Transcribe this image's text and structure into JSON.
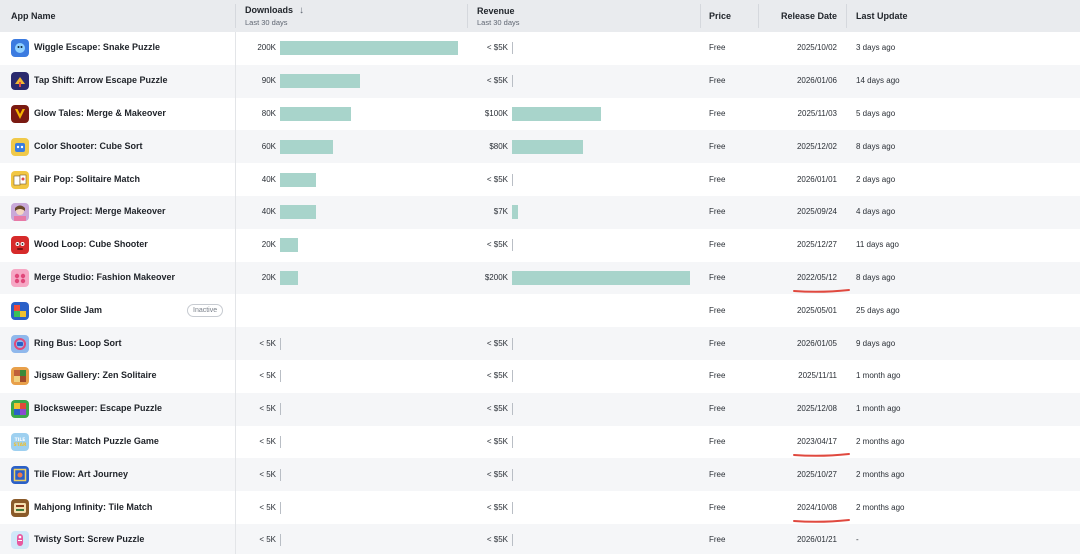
{
  "columns": {
    "app_name": "App Name",
    "downloads": "Downloads",
    "downloads_sub": "Last 30 days",
    "revenue": "Revenue",
    "revenue_sub": "Last 30 days",
    "price": "Price",
    "release_date": "Release Date",
    "last_update": "Last Update"
  },
  "colors": {
    "bar": "#a8d4cb",
    "annotation": "#e0493f"
  },
  "rows": [
    {
      "name": "Wiggle Escape: Snake Puzzle",
      "icon": "snake-app-icon",
      "downloads": "200K",
      "downloads_value": 200,
      "revenue": "< $5K",
      "revenue_value": 0,
      "price": "Free",
      "release": "2025/10/02",
      "update": "3 days ago",
      "status": ""
    },
    {
      "name": "Tap Shift: Arrow Escape Puzzle",
      "icon": "arrow-app-icon",
      "downloads": "90K",
      "downloads_value": 90,
      "revenue": "< $5K",
      "revenue_value": 0,
      "price": "Free",
      "release": "2026/01/06",
      "update": "14 days ago",
      "status": ""
    },
    {
      "name": "Glow Tales: Merge & Makeover",
      "icon": "glow-app-icon",
      "downloads": "80K",
      "downloads_value": 80,
      "revenue": "$100K",
      "revenue_value": 100,
      "price": "Free",
      "release": "2025/11/03",
      "update": "5 days ago",
      "status": ""
    },
    {
      "name": "Color Shooter: Cube Sort",
      "icon": "cube-app-icon",
      "downloads": "60K",
      "downloads_value": 60,
      "revenue": "$80K",
      "revenue_value": 80,
      "price": "Free",
      "release": "2025/12/02",
      "update": "8 days ago",
      "status": ""
    },
    {
      "name": "Pair Pop: Solitaire Match",
      "icon": "cards-app-icon",
      "downloads": "40K",
      "downloads_value": 40,
      "revenue": "< $5K",
      "revenue_value": 0,
      "price": "Free",
      "release": "2026/01/01",
      "update": "2 days ago",
      "status": ""
    },
    {
      "name": "Party Project: Merge Makeover",
      "icon": "party-app-icon",
      "downloads": "40K",
      "downloads_value": 40,
      "revenue": "$7K",
      "revenue_value": 7,
      "price": "Free",
      "release": "2025/09/24",
      "update": "4 days ago",
      "status": ""
    },
    {
      "name": "Wood Loop: Cube Shooter",
      "icon": "loop-app-icon",
      "downloads": "20K",
      "downloads_value": 20,
      "revenue": "< $5K",
      "revenue_value": 0,
      "price": "Free",
      "release": "2025/12/27",
      "update": "11 days ago",
      "status": ""
    },
    {
      "name": "Merge Studio: Fashion Makeover",
      "icon": "fashion-app-icon",
      "downloads": "20K",
      "downloads_value": 20,
      "revenue": "$200K",
      "revenue_value": 200,
      "price": "Free",
      "release": "2022/05/12",
      "update": "8 days ago",
      "status": "",
      "annotated": true
    },
    {
      "name": "Color Slide Jam",
      "icon": "slide-app-icon",
      "downloads": "",
      "downloads_value": null,
      "revenue": "",
      "revenue_value": null,
      "price": "Free",
      "release": "2025/05/01",
      "update": "25 days ago",
      "status": "Inactive"
    },
    {
      "name": "Ring Bus: Loop Sort",
      "icon": "bus-app-icon",
      "downloads": "< 5K",
      "downloads_value": 0,
      "revenue": "< $5K",
      "revenue_value": 0,
      "price": "Free",
      "release": "2026/01/05",
      "update": "9 days ago",
      "status": ""
    },
    {
      "name": "Jigsaw Gallery: Zen Solitaire",
      "icon": "jigsaw-app-icon",
      "downloads": "< 5K",
      "downloads_value": 0,
      "revenue": "< $5K",
      "revenue_value": 0,
      "price": "Free",
      "release": "2025/11/11",
      "update": "1 month ago",
      "status": ""
    },
    {
      "name": "Blocksweeper: Escape Puzzle",
      "icon": "blocks-app-icon",
      "downloads": "< 5K",
      "downloads_value": 0,
      "revenue": "< $5K",
      "revenue_value": 0,
      "price": "Free",
      "release": "2025/12/08",
      "update": "1 month ago",
      "status": ""
    },
    {
      "name": "Tile Star: Match Puzzle Game",
      "icon": "tilestar-app-icon",
      "downloads": "< 5K",
      "downloads_value": 0,
      "revenue": "< $5K",
      "revenue_value": 0,
      "price": "Free",
      "release": "2023/04/17",
      "update": "2 months ago",
      "status": "",
      "annotated": true
    },
    {
      "name": "Tile Flow: Art Journey",
      "icon": "tileflow-app-icon",
      "downloads": "< 5K",
      "downloads_value": 0,
      "revenue": "< $5K",
      "revenue_value": 0,
      "price": "Free",
      "release": "2025/10/27",
      "update": "2 months ago",
      "status": ""
    },
    {
      "name": "Mahjong Infinity: Tile Match",
      "icon": "mahjong-app-icon",
      "downloads": "< 5K",
      "downloads_value": 0,
      "revenue": "< $5K",
      "revenue_value": 0,
      "price": "Free",
      "release": "2024/10/08",
      "update": "2 months ago",
      "status": "",
      "annotated": true
    },
    {
      "name": "Twisty Sort: Screw Puzzle",
      "icon": "screw-app-icon",
      "downloads": "< 5K",
      "downloads_value": 0,
      "revenue": "< $5K",
      "revenue_value": 0,
      "price": "Free",
      "release": "2026/01/21",
      "update": "-",
      "status": ""
    }
  ]
}
